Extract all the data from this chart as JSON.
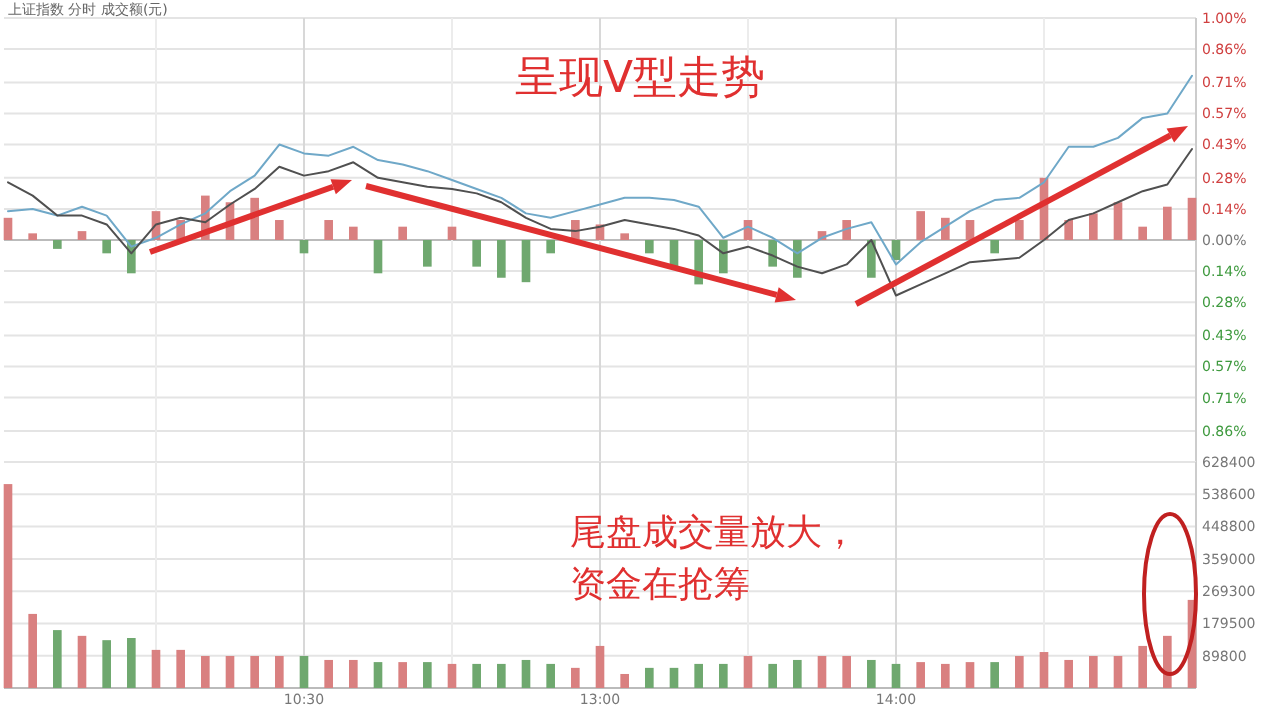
{
  "chart_data": [
    {
      "type": "line",
      "title": "上证指数 分时 成交额(元)",
      "annotations": [
        "呈现V型走势"
      ],
      "categories": [
        null,
        null,
        null,
        null,
        null,
        null,
        null,
        null,
        null,
        null,
        null,
        null,
        null,
        null,
        null,
        null,
        null,
        null,
        null,
        null,
        null,
        null,
        null,
        null,
        null,
        null,
        null,
        null,
        null,
        null,
        null,
        null,
        null,
        null,
        null,
        null,
        null,
        null,
        null,
        null,
        null,
        null,
        null,
        null,
        null,
        null,
        null,
        null,
        null
      ],
      "ylim": [
        -1.0,
        1.0
      ],
      "yticks": [
        {
          "value": 1.0,
          "label": "1.00%"
        },
        {
          "value": 0.86,
          "label": "0.86%"
        },
        {
          "value": 0.71,
          "label": "0.71%"
        },
        {
          "value": 0.57,
          "label": "0.57%"
        },
        {
          "value": 0.43,
          "label": "0.43%"
        },
        {
          "value": 0.28,
          "label": "0.28%"
        },
        {
          "value": 0.14,
          "label": "0.14%"
        },
        {
          "value": 0,
          "label": "0.00%"
        },
        {
          "value": -0.14,
          "label": "0.14%"
        },
        {
          "value": -0.28,
          "label": "0.28%"
        },
        {
          "value": -0.43,
          "label": "0.43%"
        },
        {
          "value": -0.57,
          "label": "0.57%"
        },
        {
          "value": -0.71,
          "label": "0.71%"
        },
        {
          "value": -0.86,
          "label": "0.86%"
        }
      ],
      "grid": true,
      "tick_labels": "y",
      "series": [
        {
          "type": "bar",
          "values": [
            0.1,
            0.03,
            -0.04,
            0.04,
            -0.06,
            -0.15,
            0.13,
            0.09,
            0.2,
            0.17,
            0.19,
            0.09,
            -0.06,
            0.09,
            0.06,
            -0.15,
            0.06,
            -0.12,
            0.06,
            -0.12,
            -0.17,
            -0.19,
            -0.06,
            0.09,
            0.07,
            0.03,
            -0.06,
            -0.12,
            -0.2,
            -0.15,
            0.09,
            -0.12,
            -0.17,
            0.04,
            0.09,
            -0.17,
            -0.09,
            0.13,
            0.1,
            0.09,
            -0.06,
            0.09,
            0.28,
            0.09,
            0.12,
            0.17,
            0.06,
            0.15,
            0.19
          ],
          "colors": [
            "#d98080",
            "#d98080",
            "#6fa86f",
            "#d98080",
            "#6fa86f",
            "#6fa86f",
            "#d98080",
            "#d98080",
            "#d98080",
            "#d98080",
            "#d98080",
            "#d98080",
            "#6fa86f",
            "#d98080",
            "#d98080",
            "#6fa86f",
            "#d98080",
            "#6fa86f",
            "#d98080",
            "#6fa86f",
            "#6fa86f",
            "#6fa86f",
            "#6fa86f",
            "#d98080",
            "#d98080",
            "#d98080",
            "#6fa86f",
            "#6fa86f",
            "#6fa86f",
            "#6fa86f",
            "#d98080",
            "#6fa86f",
            "#6fa86f",
            "#d98080",
            "#d98080",
            "#6fa86f",
            "#6fa86f",
            "#d98080",
            "#d98080",
            "#d98080",
            "#6fa86f",
            "#d98080",
            "#d98080",
            "#d98080",
            "#d98080",
            "#d98080",
            "#d98080",
            "#d98080",
            "#d98080"
          ]
        },
        {
          "type": "line",
          "color": "#6fa8c8",
          "values": [
            0.13,
            0.14,
            0.11,
            0.15,
            0.11,
            -0.03,
            0.01,
            0.07,
            0.12,
            0.22,
            0.29,
            0.43,
            0.39,
            0.38,
            0.42,
            0.36,
            0.34,
            0.31,
            0.27,
            0.23,
            0.19,
            0.12,
            0.1,
            0.13,
            0.16,
            0.19,
            0.19,
            0.18,
            0.15,
            0.01,
            0.06,
            0.01,
            -0.06,
            0.01,
            0.05,
            0.08,
            -0.11,
            -0.01,
            0.06,
            0.13,
            0.18,
            0.19,
            0.26,
            0.42,
            0.42,
            0.46,
            0.55,
            0.57,
            0.74
          ]
        },
        {
          "type": "line",
          "color": "#505050",
          "values": [
            0.26,
            0.2,
            0.11,
            0.11,
            0.07,
            -0.06,
            0.07,
            0.1,
            0.08,
            0.16,
            0.23,
            0.33,
            0.29,
            0.31,
            0.35,
            0.28,
            0.26,
            0.24,
            0.23,
            0.21,
            0.17,
            0.1,
            0.05,
            0.04,
            0.06,
            0.09,
            0.07,
            0.05,
            0.02,
            -0.06,
            -0.03,
            -0.07,
            -0.12,
            -0.15,
            -0.11,
            0.0,
            -0.25,
            -0.2,
            -0.15,
            -0.1,
            -0.09,
            -0.08,
            0.0,
            0.09,
            0.12,
            0.17,
            0.22,
            0.25,
            0.41
          ]
        }
      ]
    },
    {
      "type": "bar",
      "annotations": [
        "尾盘成交量放大，资金在抢筹"
      ],
      "categories": [
        null,
        null,
        null,
        null,
        null,
        null,
        null,
        null,
        null,
        null,
        null,
        null,
        "10:30",
        null,
        null,
        null,
        null,
        null,
        null,
        null,
        null,
        null,
        null,
        null,
        "13:00",
        null,
        null,
        null,
        null,
        null,
        null,
        null,
        null,
        null,
        null,
        null,
        "14:00",
        null,
        null,
        null,
        null,
        null,
        null,
        null,
        null,
        null,
        null,
        null,
        null
      ],
      "ylim": [
        0,
        628400
      ],
      "yticks": [
        89800,
        179500,
        269300,
        359000,
        448800,
        538600,
        628400
      ],
      "grid": true,
      "values": [
        567000,
        206000,
        161000,
        145000,
        133000,
        139000,
        106000,
        106000,
        89000,
        89000,
        89000,
        89000,
        89000,
        78000,
        78000,
        72000,
        72000,
        72000,
        67000,
        67000,
        67000,
        78000,
        67000,
        56000,
        117000,
        39000,
        56000,
        56000,
        67000,
        67000,
        89000,
        67000,
        78000,
        89000,
        89000,
        78000,
        67000,
        72000,
        67000,
        72000,
        72000,
        89000,
        100000,
        78000,
        89000,
        89000,
        117000,
        145000,
        245000
      ],
      "colors": [
        "#d98080",
        "#d98080",
        "#6fa86f",
        "#d98080",
        "#6fa86f",
        "#6fa86f",
        "#d98080",
        "#d98080",
        "#d98080",
        "#d98080",
        "#d98080",
        "#d98080",
        "#6fa86f",
        "#d98080",
        "#d98080",
        "#6fa86f",
        "#d98080",
        "#6fa86f",
        "#d98080",
        "#6fa86f",
        "#6fa86f",
        "#6fa86f",
        "#6fa86f",
        "#d98080",
        "#d98080",
        "#d98080",
        "#6fa86f",
        "#6fa86f",
        "#6fa86f",
        "#6fa86f",
        "#d98080",
        "#6fa86f",
        "#6fa86f",
        "#d98080",
        "#d98080",
        "#6fa86f",
        "#6fa86f",
        "#d98080",
        "#d98080",
        "#d98080",
        "#6fa86f",
        "#d98080",
        "#d98080",
        "#d98080",
        "#d98080",
        "#d98080",
        "#d98080",
        "#d98080",
        "#d98080"
      ]
    }
  ]
}
